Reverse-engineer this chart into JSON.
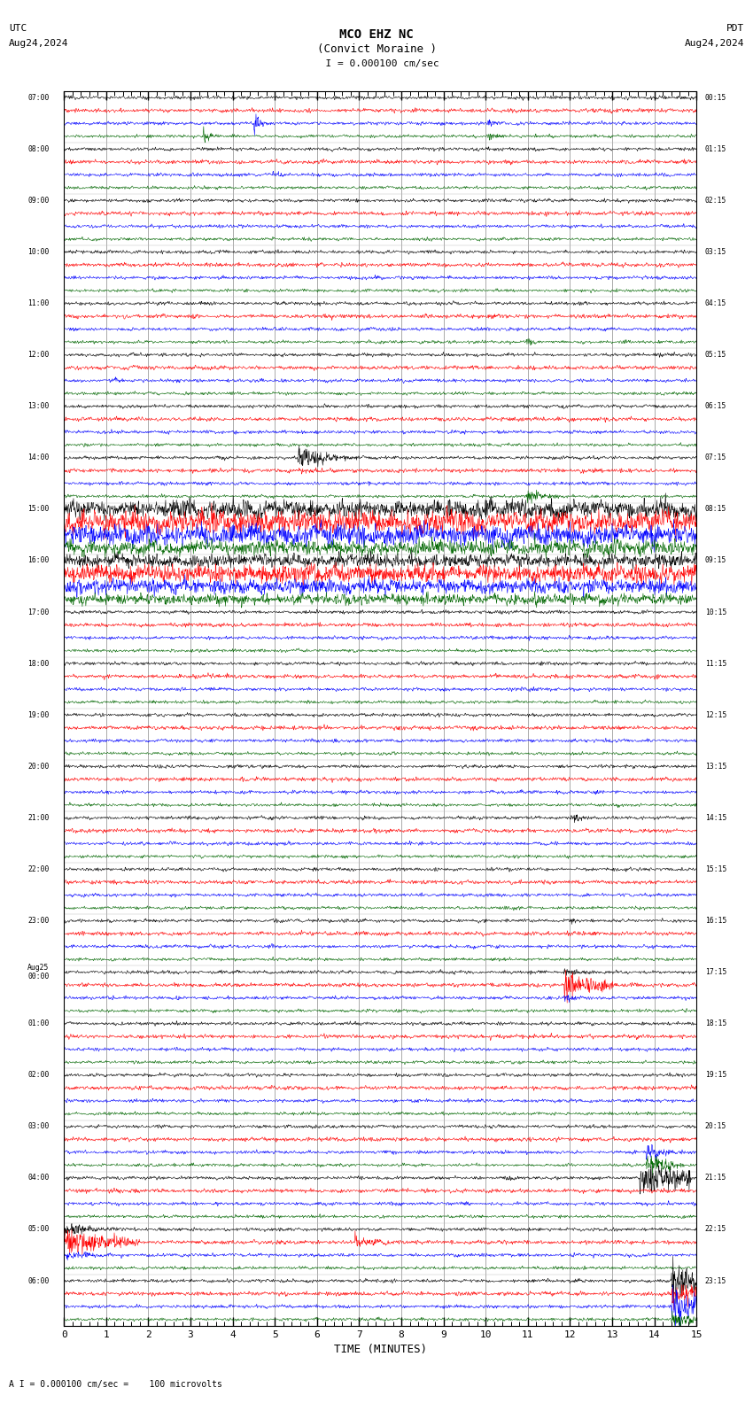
{
  "title_line1": "MCO EHZ NC",
  "title_line2": "(Convict Moraine )",
  "scale_bar": "  I = 0.000100 cm/sec",
  "utc_label": "UTC",
  "utc_date": "Aug24,2024",
  "pdt_label": "PDT",
  "pdt_date": "Aug24,2024",
  "xlabel": "TIME (MINUTES)",
  "bottom_note": "A I = 0.000100 cm/sec =    100 microvolts",
  "x_min": 0,
  "x_max": 15,
  "background_color": "#ffffff",
  "trace_colors": [
    "black",
    "red",
    "blue",
    "green"
  ],
  "grid_color": "#888888",
  "utc_times_left": [
    "07:00",
    "08:00",
    "09:00",
    "10:00",
    "11:00",
    "12:00",
    "13:00",
    "14:00",
    "15:00",
    "16:00",
    "17:00",
    "18:00",
    "19:00",
    "20:00",
    "21:00",
    "22:00",
    "23:00",
    "Aug25\n00:00",
    "01:00",
    "02:00",
    "03:00",
    "04:00",
    "05:00",
    "06:00"
  ],
  "pdt_times_right": [
    "00:15",
    "01:15",
    "02:15",
    "03:15",
    "04:15",
    "05:15",
    "06:15",
    "07:15",
    "08:15",
    "09:15",
    "10:15",
    "11:15",
    "12:15",
    "13:15",
    "14:15",
    "15:15",
    "16:15",
    "17:15",
    "18:15",
    "19:15",
    "20:15",
    "21:15",
    "22:15",
    "23:15"
  ],
  "num_rows": 24,
  "traces_per_row": 4,
  "fig_width": 8.5,
  "fig_height": 15.84
}
